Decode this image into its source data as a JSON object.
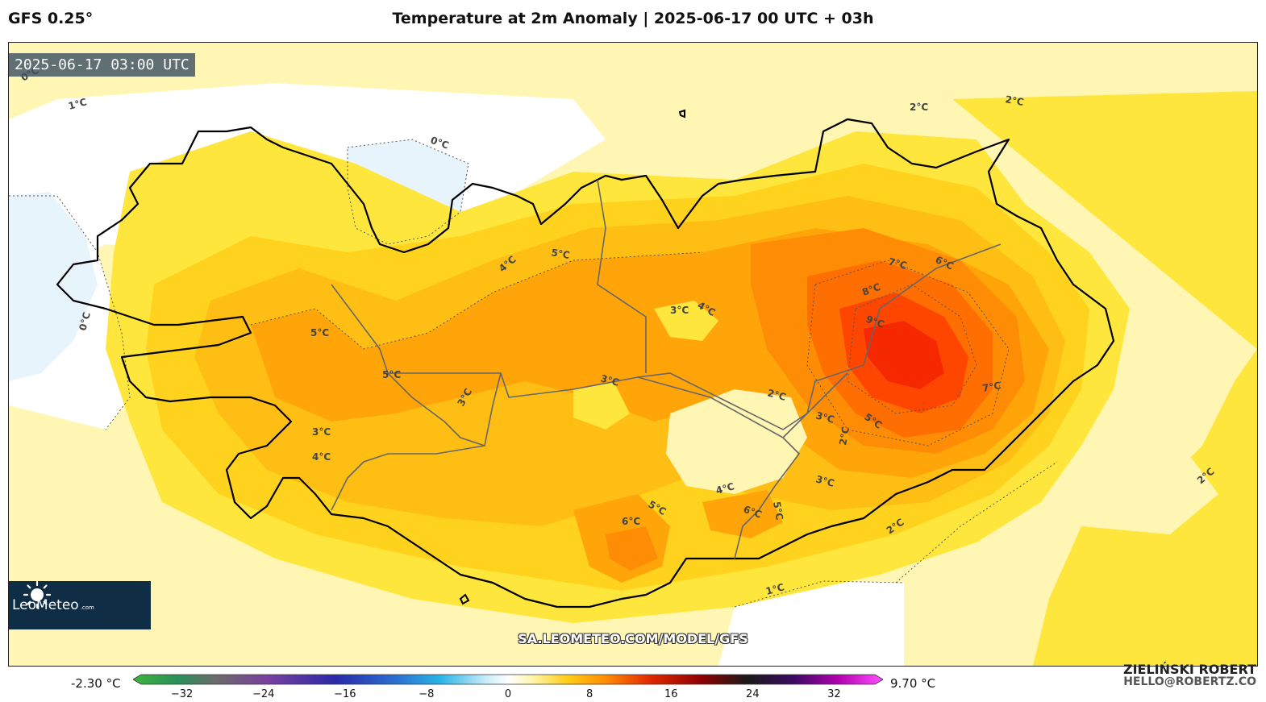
{
  "header": {
    "model": "GFS 0.25°",
    "title": "Temperature at 2m Anomaly | 2025-06-17 00 UTC + 03h"
  },
  "map": {
    "valid_time": "2025-06-17 03:00 UTC",
    "region": "Iceland",
    "contour_labels": [
      "0°C",
      "1°C",
      "0°C",
      "0°C",
      "2°C",
      "2°C",
      "4°C",
      "5°C",
      "5°C",
      "5°C",
      "3°C",
      "4°C",
      "7°C",
      "6°C",
      "8°C",
      "9°C",
      "3°C",
      "3°C",
      "2°C",
      "3°C",
      "5°C",
      "2°C",
      "3°C",
      "3°C",
      "4°C",
      "7°C",
      "4°C",
      "6°C",
      "5°C",
      "6°C",
      "5°C",
      "2°C",
      "1°C",
      "2°C"
    ],
    "colors": {
      "lt0": "#e8f4fc",
      "c0_1": "#ffffff",
      "c1_2": "#fff6b3",
      "c2_3": "#ffe63c",
      "c3_4": "#ffd21e",
      "c4_5": "#ffbe14",
      "c5_6": "#ffa50a",
      "c6_7": "#ff8c05",
      "c7_8": "#ff6e00",
      "c8_9": "#ff4600",
      "c9_10": "#f52800"
    }
  },
  "branding": {
    "logo_text": "LeoMeteo",
    "logo_domain": ".com",
    "url": "SA.LEOMETEO.COM/MODEL/GFS",
    "author": "ZIELIŃSKI ROBERT",
    "email": "HELLO@ROBERTZ.CO"
  },
  "colorbar": {
    "min_label": "-2.30 °C",
    "max_label": "9.70 °C",
    "range": [
      -36,
      36
    ],
    "ticks": [
      "−32",
      "−24",
      "−16",
      "−8",
      "0",
      "8",
      "16",
      "24",
      "32"
    ],
    "tick_values": [
      -32,
      -24,
      -16,
      -8,
      0,
      8,
      16,
      24,
      32
    ]
  }
}
